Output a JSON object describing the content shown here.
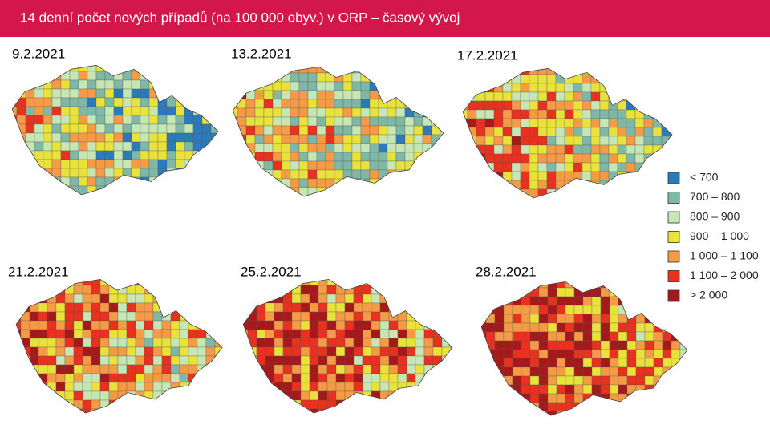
{
  "header": {
    "title": "14 denní počet nových případů (na 100 000 obyv.) v ORP – časový vývoj"
  },
  "maps": [
    {
      "date": "9.2.2021"
    },
    {
      "date": "13.2.2021"
    },
    {
      "date": "17.2.2021"
    },
    {
      "date": "21.2.2021"
    },
    {
      "date": "25.2.2021"
    },
    {
      "date": "28.2.2021"
    }
  ],
  "legend": [
    {
      "label": "< 700",
      "color": "#2b7bba"
    },
    {
      "label": "700 – 800",
      "color": "#7fb8a6"
    },
    {
      "label": "800 – 900",
      "color": "#c6e6b3"
    },
    {
      "label": "900 – 1 000",
      "color": "#e8e23a"
    },
    {
      "label": "1 000 – 1 100",
      "color": "#f59a45"
    },
    {
      "label": "1 100 – 2 000",
      "color": "#e8321f"
    },
    {
      "label": "> 2 000",
      "color": "#a5191b"
    }
  ]
}
